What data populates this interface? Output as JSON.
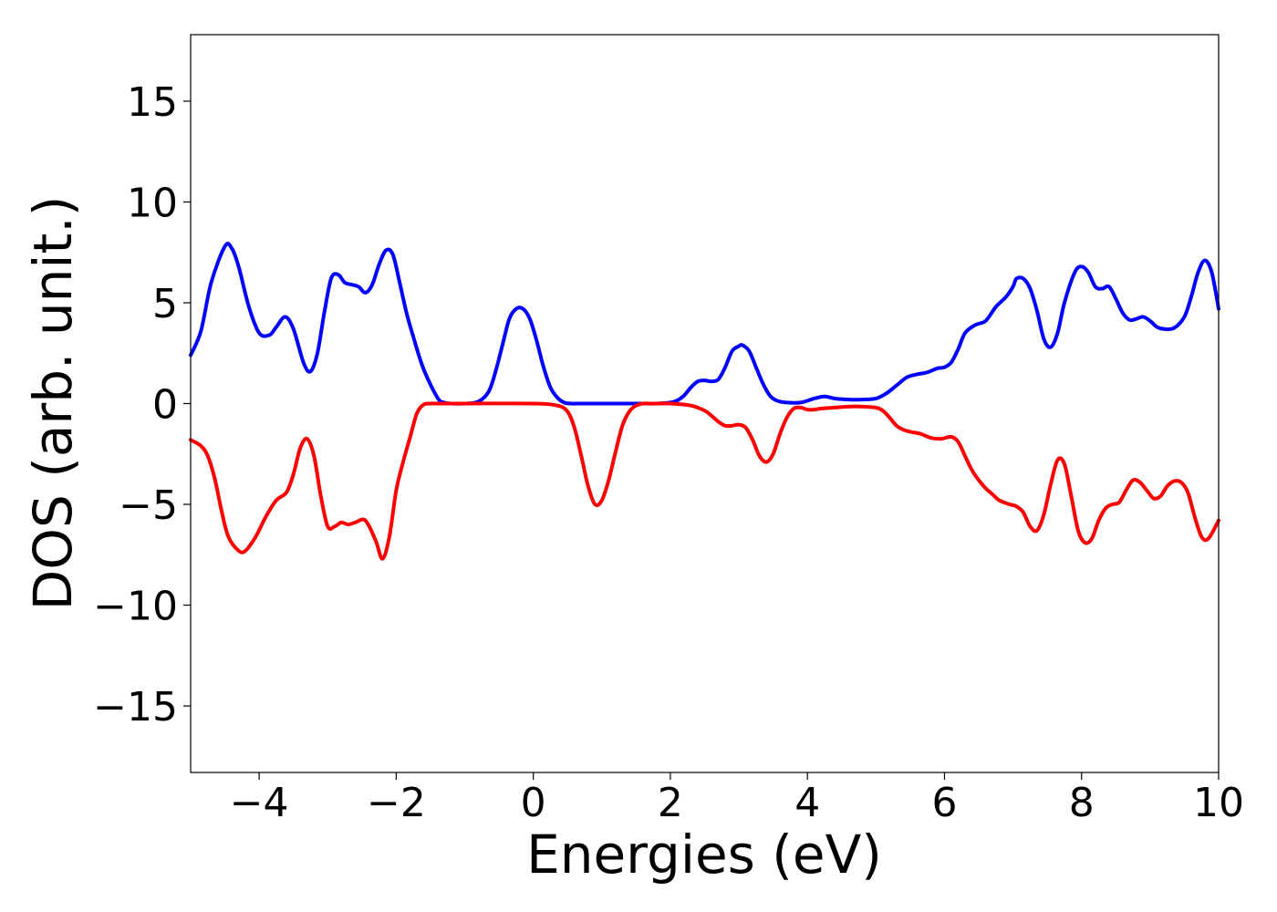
{
  "chart_data": {
    "type": "line",
    "title": "",
    "xlabel": "Energies (eV)",
    "ylabel": "DOS (arb. unit.)",
    "xlim": [
      -5,
      10
    ],
    "ylim": [
      -18.3,
      18.3
    ],
    "xticks": [
      -4,
      -2,
      0,
      2,
      4,
      6,
      8,
      10
    ],
    "yticks": [
      -15,
      -10,
      -5,
      0,
      5,
      10,
      15
    ],
    "grid": false,
    "legend": "none",
    "series": [
      {
        "color": "#0000ff",
        "x": [
          -5.0,
          -4.85,
          -4.7,
          -4.5,
          -4.4,
          -4.3,
          -4.15,
          -4.0,
          -3.85,
          -3.75,
          -3.62,
          -3.5,
          -3.35,
          -3.25,
          -3.15,
          -3.05,
          -2.95,
          -2.85,
          -2.75,
          -2.65,
          -2.55,
          -2.45,
          -2.35,
          -2.25,
          -2.15,
          -2.05,
          -1.95,
          -1.85,
          -1.75,
          -1.6,
          -1.4,
          -1.3,
          -1.2,
          -1.0,
          -0.8,
          -0.65,
          -0.55,
          -0.45,
          -0.35,
          -0.25,
          -0.15,
          -0.05,
          0.05,
          0.15,
          0.25,
          0.35,
          0.45,
          0.55,
          0.7,
          1.0,
          1.5,
          1.8,
          2.0,
          2.1,
          2.2,
          2.3,
          2.4,
          2.5,
          2.6,
          2.7,
          2.8,
          2.9,
          3.0,
          3.05,
          3.15,
          3.25,
          3.35,
          3.45,
          3.55,
          3.7,
          3.9,
          4.1,
          4.25,
          4.4,
          4.6,
          4.8,
          5.0,
          5.15,
          5.3,
          5.45,
          5.6,
          5.75,
          5.9,
          6.0,
          6.1,
          6.2,
          6.3,
          6.45,
          6.6,
          6.75,
          6.9,
          7.0,
          7.05,
          7.15,
          7.25,
          7.35,
          7.45,
          7.55,
          7.65,
          7.75,
          7.9,
          8.0,
          8.1,
          8.2,
          8.3,
          8.4,
          8.5,
          8.6,
          8.7,
          8.8,
          8.9,
          9.0,
          9.1,
          9.2,
          9.35,
          9.5,
          9.6,
          9.7,
          9.8,
          9.9,
          10.0
        ],
        "y": [
          2.4,
          3.6,
          6.0,
          7.8,
          7.7,
          6.8,
          4.8,
          3.5,
          3.4,
          3.8,
          4.3,
          3.7,
          2.0,
          1.6,
          2.5,
          4.5,
          6.2,
          6.4,
          6.0,
          5.9,
          5.8,
          5.5,
          5.9,
          6.9,
          7.6,
          7.4,
          6.0,
          4.5,
          3.3,
          1.7,
          0.3,
          0.05,
          0.0,
          0.0,
          0.1,
          0.6,
          1.6,
          2.9,
          4.2,
          4.7,
          4.7,
          4.2,
          3.1,
          1.8,
          0.8,
          0.3,
          0.05,
          0.0,
          0.0,
          0.0,
          0.0,
          0.0,
          0.05,
          0.15,
          0.4,
          0.8,
          1.1,
          1.15,
          1.1,
          1.2,
          1.8,
          2.6,
          2.85,
          2.9,
          2.6,
          1.8,
          1.0,
          0.4,
          0.15,
          0.05,
          0.05,
          0.25,
          0.35,
          0.25,
          0.2,
          0.2,
          0.25,
          0.5,
          0.9,
          1.3,
          1.45,
          1.55,
          1.75,
          1.8,
          2.05,
          2.7,
          3.5,
          3.9,
          4.1,
          4.8,
          5.3,
          5.8,
          6.2,
          6.2,
          5.7,
          4.6,
          3.2,
          2.8,
          3.5,
          5.0,
          6.5,
          6.8,
          6.5,
          5.8,
          5.7,
          5.8,
          5.2,
          4.5,
          4.15,
          4.2,
          4.3,
          4.1,
          3.8,
          3.7,
          3.75,
          4.3,
          5.3,
          6.5,
          7.1,
          6.5,
          4.7
        ]
      },
      {
        "color": "#ff0000",
        "x": [
          -5.0,
          -4.85,
          -4.75,
          -4.65,
          -4.55,
          -4.45,
          -4.3,
          -4.2,
          -4.05,
          -3.9,
          -3.75,
          -3.6,
          -3.5,
          -3.4,
          -3.3,
          -3.2,
          -3.1,
          -3.0,
          -2.9,
          -2.8,
          -2.7,
          -2.6,
          -2.45,
          -2.3,
          -2.2,
          -2.1,
          -2.0,
          -1.9,
          -1.8,
          -1.7,
          -1.6,
          -1.5,
          -1.4,
          -1.3,
          -1.2,
          -1.0,
          0.0,
          0.35,
          0.5,
          0.6,
          0.7,
          0.8,
          0.9,
          1.0,
          1.1,
          1.2,
          1.3,
          1.4,
          1.5,
          1.6,
          1.7,
          1.8,
          2.0,
          2.3,
          2.5,
          2.6,
          2.7,
          2.8,
          2.9,
          3.0,
          3.1,
          3.2,
          3.3,
          3.4,
          3.5,
          3.6,
          3.7,
          3.8,
          3.9,
          4.0,
          4.1,
          4.2,
          4.4,
          4.6,
          4.8,
          5.0,
          5.1,
          5.2,
          5.3,
          5.4,
          5.5,
          5.65,
          5.8,
          5.95,
          6.1,
          6.2,
          6.3,
          6.4,
          6.5,
          6.6,
          6.7,
          6.8,
          6.95,
          7.05,
          7.15,
          7.25,
          7.35,
          7.45,
          7.55,
          7.65,
          7.75,
          7.85,
          7.95,
          8.05,
          8.15,
          8.25,
          8.35,
          8.45,
          8.55,
          8.65,
          8.75,
          8.85,
          8.95,
          9.05,
          9.15,
          9.25,
          9.35,
          9.45,
          9.55,
          9.65,
          9.75,
          9.85,
          10.0
        ],
        "y": [
          -1.8,
          -2.1,
          -2.6,
          -3.7,
          -5.3,
          -6.6,
          -7.3,
          -7.3,
          -6.6,
          -5.6,
          -4.8,
          -4.4,
          -3.5,
          -2.2,
          -1.75,
          -2.6,
          -4.6,
          -6.1,
          -6.1,
          -5.9,
          -6.0,
          -5.9,
          -5.8,
          -6.8,
          -7.7,
          -6.6,
          -4.3,
          -2.9,
          -1.7,
          -0.5,
          -0.05,
          0.0,
          0.0,
          0.0,
          0.0,
          0.0,
          0.0,
          -0.1,
          -0.4,
          -1.2,
          -2.6,
          -4.1,
          -5.0,
          -4.8,
          -3.8,
          -2.4,
          -1.1,
          -0.4,
          -0.1,
          0.0,
          0.0,
          0.0,
          0.0,
          -0.1,
          -0.35,
          -0.6,
          -0.9,
          -1.1,
          -1.1,
          -1.05,
          -1.2,
          -1.8,
          -2.6,
          -2.9,
          -2.5,
          -1.5,
          -0.7,
          -0.25,
          -0.2,
          -0.3,
          -0.3,
          -0.25,
          -0.2,
          -0.15,
          -0.15,
          -0.2,
          -0.35,
          -0.7,
          -1.1,
          -1.3,
          -1.4,
          -1.5,
          -1.7,
          -1.75,
          -1.65,
          -1.9,
          -2.6,
          -3.3,
          -3.8,
          -4.2,
          -4.5,
          -4.8,
          -5.0,
          -5.1,
          -5.4,
          -6.1,
          -6.3,
          -5.5,
          -4.0,
          -2.8,
          -3.0,
          -4.6,
          -6.3,
          -6.9,
          -6.7,
          -5.8,
          -5.2,
          -5.0,
          -4.9,
          -4.3,
          -3.8,
          -3.9,
          -4.3,
          -4.7,
          -4.6,
          -4.1,
          -3.85,
          -3.9,
          -4.4,
          -5.6,
          -6.6,
          -6.7,
          -5.8
        ]
      }
    ]
  }
}
